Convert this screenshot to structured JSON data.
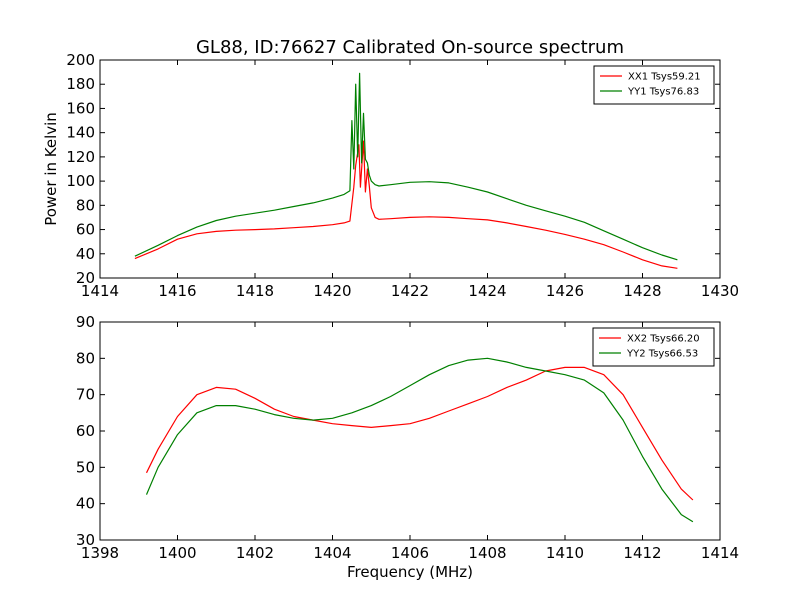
{
  "title": "GL88, ID:76627 Calibrated On-source spectrum",
  "chart_data": [
    {
      "type": "line",
      "ylabel": "Power in Kelvin",
      "xlabel": "",
      "xlim": [
        1414,
        1430
      ],
      "ylim": [
        20,
        200
      ],
      "xticks": [
        "1414",
        "1416",
        "1418",
        "1420",
        "1422",
        "1424",
        "1426",
        "1428",
        "1430"
      ],
      "yticks": [
        "20",
        "40",
        "60",
        "80",
        "100",
        "120",
        "140",
        "160",
        "180",
        "200"
      ],
      "legend_position": "top-right",
      "series": [
        {
          "name": "XX1 Tsys59.21",
          "color": "#ff0000",
          "x": [
            1414.9,
            1415.5,
            1416,
            1416.5,
            1417,
            1417.5,
            1418,
            1418.5,
            1419,
            1419.5,
            1420,
            1420.3,
            1420.45,
            1420.55,
            1420.6,
            1420.68,
            1420.72,
            1420.8,
            1420.85,
            1420.9,
            1420.95,
            1421.0,
            1421.1,
            1421.2,
            1421.5,
            1422,
            1422.5,
            1423,
            1423.5,
            1424,
            1424.5,
            1425,
            1425.5,
            1426,
            1426.5,
            1427,
            1427.5,
            1428,
            1428.5,
            1428.9
          ],
          "y": [
            36,
            44,
            52,
            56.5,
            58.5,
            59.5,
            60,
            60.5,
            61.5,
            62.5,
            64,
            65.5,
            67,
            95,
            113,
            130,
            95,
            133,
            91,
            110,
            96,
            78,
            70,
            68.5,
            69,
            70,
            70.5,
            70,
            69,
            68,
            65.5,
            62.5,
            59.5,
            56,
            52,
            47.5,
            41.5,
            35,
            30,
            28
          ]
        },
        {
          "name": "YY1 Tsys76.83",
          "color": "#008000",
          "x": [
            1414.9,
            1415.5,
            1416,
            1416.5,
            1417,
            1417.5,
            1418,
            1418.5,
            1419,
            1419.5,
            1420,
            1420.3,
            1420.45,
            1420.5,
            1420.55,
            1420.6,
            1420.65,
            1420.7,
            1420.75,
            1420.8,
            1420.85,
            1420.9,
            1420.95,
            1421.0,
            1421.1,
            1421.2,
            1421.5,
            1422,
            1422.5,
            1423,
            1423.5,
            1424,
            1424.5,
            1425,
            1425.5,
            1426,
            1426.5,
            1427,
            1427.5,
            1428,
            1428.5,
            1428.9
          ],
          "y": [
            38,
            47,
            55,
            62,
            67.5,
            71,
            73.5,
            76,
            79,
            82,
            86,
            89,
            92,
            150,
            110,
            180,
            120,
            189,
            115,
            156,
            118,
            115,
            105,
            100,
            97,
            96,
            97,
            99,
            99.5,
            98.5,
            95,
            91,
            85.5,
            80,
            75.5,
            71,
            66,
            59,
            52,
            45,
            39,
            35
          ]
        }
      ]
    },
    {
      "type": "line",
      "ylabel": "",
      "xlabel": "Frequency (MHz)",
      "xlim": [
        1398,
        1414
      ],
      "ylim": [
        30,
        90
      ],
      "xticks": [
        "1398",
        "1400",
        "1402",
        "1404",
        "1406",
        "1408",
        "1410",
        "1412",
        "1414"
      ],
      "yticks": [
        "30",
        "40",
        "50",
        "60",
        "70",
        "80",
        "90"
      ],
      "legend_position": "top-right",
      "series": [
        {
          "name": "XX2 Tsys66.20",
          "color": "#ff0000",
          "x": [
            1399.2,
            1399.5,
            1400,
            1400.5,
            1401,
            1401.5,
            1402,
            1402.5,
            1403,
            1403.5,
            1404,
            1404.5,
            1405,
            1405.5,
            1406,
            1406.5,
            1407,
            1407.5,
            1408,
            1408.5,
            1409,
            1409.5,
            1410,
            1410.5,
            1411,
            1411.5,
            1412,
            1412.5,
            1413,
            1413.3
          ],
          "y": [
            48.5,
            55,
            64,
            70,
            72,
            71.5,
            69,
            66,
            64,
            63,
            62,
            61.5,
            61,
            61.5,
            62,
            63.5,
            65.5,
            67.5,
            69.5,
            72,
            74,
            76.5,
            77.5,
            77.5,
            75.5,
            70,
            61,
            52,
            44,
            41
          ]
        },
        {
          "name": "YY2 Tsys66.53",
          "color": "#008000",
          "x": [
            1399.2,
            1399.5,
            1400,
            1400.5,
            1401,
            1401.5,
            1402,
            1402.5,
            1403,
            1403.5,
            1404,
            1404.5,
            1405,
            1405.5,
            1406,
            1406.5,
            1407,
            1407.5,
            1408,
            1408.5,
            1409,
            1409.5,
            1410,
            1410.5,
            1411,
            1411.5,
            1412,
            1412.5,
            1413,
            1413.3
          ],
          "y": [
            42.5,
            50,
            59,
            65,
            67,
            67,
            66,
            64.5,
            63.5,
            63,
            63.5,
            65,
            67,
            69.5,
            72.5,
            75.5,
            78,
            79.5,
            80,
            79,
            77.5,
            76.5,
            75.5,
            74,
            70.5,
            63,
            53,
            44,
            37,
            35
          ]
        }
      ]
    }
  ]
}
